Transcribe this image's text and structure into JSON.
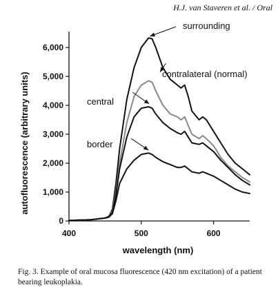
{
  "page": {
    "running_head": "H.J. van Staveren et al. / Oral",
    "caption": "Fig. 3.  Example of oral mucosa fluorescence (420 nm excitation) of a patient bearing leukoplakia."
  },
  "chart_data": {
    "type": "line",
    "title": "",
    "xlabel": "wavelength (nm)",
    "ylabel": "autofluorescence (arbitrary units)",
    "xlim": [
      400,
      650
    ],
    "ylim": [
      0,
      6500
    ],
    "x_ticks": [
      400,
      500,
      600
    ],
    "x_tick_labels": [
      "400",
      "500",
      "600"
    ],
    "y_ticks": [
      0,
      1000,
      2000,
      3000,
      4000,
      5000,
      6000
    ],
    "y_tick_labels": [
      "0",
      "1,000",
      "2,000",
      "3,000",
      "4,000",
      "5,000",
      "6,000"
    ],
    "grid": false,
    "legend": "none",
    "series": [
      {
        "name": "surrounding",
        "color": "#111111",
        "x": [
          400,
          430,
          450,
          455,
          460,
          465,
          470,
          480,
          490,
          500,
          510,
          515,
          520,
          530,
          540,
          550,
          555,
          560,
          565,
          570,
          580,
          585,
          590,
          600,
          610,
          620,
          630,
          640,
          650
        ],
        "y": [
          20,
          40,
          100,
          150,
          400,
          1300,
          2500,
          4200,
          5300,
          6000,
          6330,
          6300,
          6000,
          5300,
          4900,
          4700,
          4600,
          4700,
          4300,
          3800,
          3500,
          3600,
          3500,
          3100,
          2700,
          2300,
          2000,
          1800,
          1600
        ]
      },
      {
        "name": "contralateral (normal)",
        "color": "#888888",
        "x": [
          400,
          430,
          450,
          455,
          460,
          465,
          470,
          480,
          490,
          500,
          510,
          515,
          520,
          530,
          540,
          550,
          555,
          560,
          565,
          570,
          580,
          585,
          590,
          600,
          610,
          620,
          630,
          640,
          650
        ],
        "y": [
          20,
          40,
          100,
          150,
          350,
          1000,
          2000,
          3400,
          4300,
          4700,
          4850,
          4800,
          4500,
          4000,
          3700,
          3600,
          3500,
          3600,
          3300,
          3000,
          2850,
          2950,
          2850,
          2600,
          2200,
          1900,
          1700,
          1500,
          1350
        ]
      },
      {
        "name": "central",
        "color": "#111111",
        "x": [
          400,
          430,
          450,
          455,
          460,
          465,
          470,
          480,
          490,
          500,
          510,
          515,
          520,
          530,
          540,
          550,
          555,
          560,
          565,
          570,
          580,
          585,
          590,
          600,
          610,
          620,
          630,
          640,
          650
        ],
        "y": [
          20,
          40,
          100,
          150,
          300,
          900,
          1800,
          2900,
          3600,
          3900,
          3950,
          3900,
          3700,
          3400,
          3200,
          3050,
          3000,
          3100,
          2900,
          2700,
          2650,
          2700,
          2600,
          2400,
          2100,
          1850,
          1600,
          1400,
          1250
        ]
      },
      {
        "name": "border",
        "color": "#111111",
        "x": [
          400,
          430,
          450,
          455,
          460,
          465,
          470,
          480,
          490,
          500,
          510,
          515,
          520,
          530,
          540,
          550,
          555,
          560,
          565,
          570,
          580,
          585,
          590,
          600,
          610,
          620,
          630,
          640,
          650
        ],
        "y": [
          20,
          40,
          100,
          130,
          250,
          700,
          1300,
          1800,
          2100,
          2300,
          2350,
          2300,
          2200,
          2050,
          1950,
          1850,
          1850,
          1900,
          1800,
          1700,
          1650,
          1700,
          1650,
          1550,
          1400,
          1250,
          1100,
          1000,
          950
        ]
      }
    ],
    "annotations": [
      {
        "text": "surrounding",
        "arrow_from": [
          548,
          6720
        ],
        "arrow_to": [
          512,
          6390
        ]
      },
      {
        "text": "contralateral (normal)",
        "arrow_from": [
          534,
          5450
        ],
        "arrow_to": [
          526,
          5150
        ]
      },
      {
        "text": "central",
        "arrow_from": [
          488,
          4450
        ],
        "arrow_to": [
          511,
          4050
        ]
      },
      {
        "text": "border",
        "arrow_from": [
          486,
          2850
        ],
        "arrow_to": [
          510,
          2450
        ]
      }
    ]
  }
}
